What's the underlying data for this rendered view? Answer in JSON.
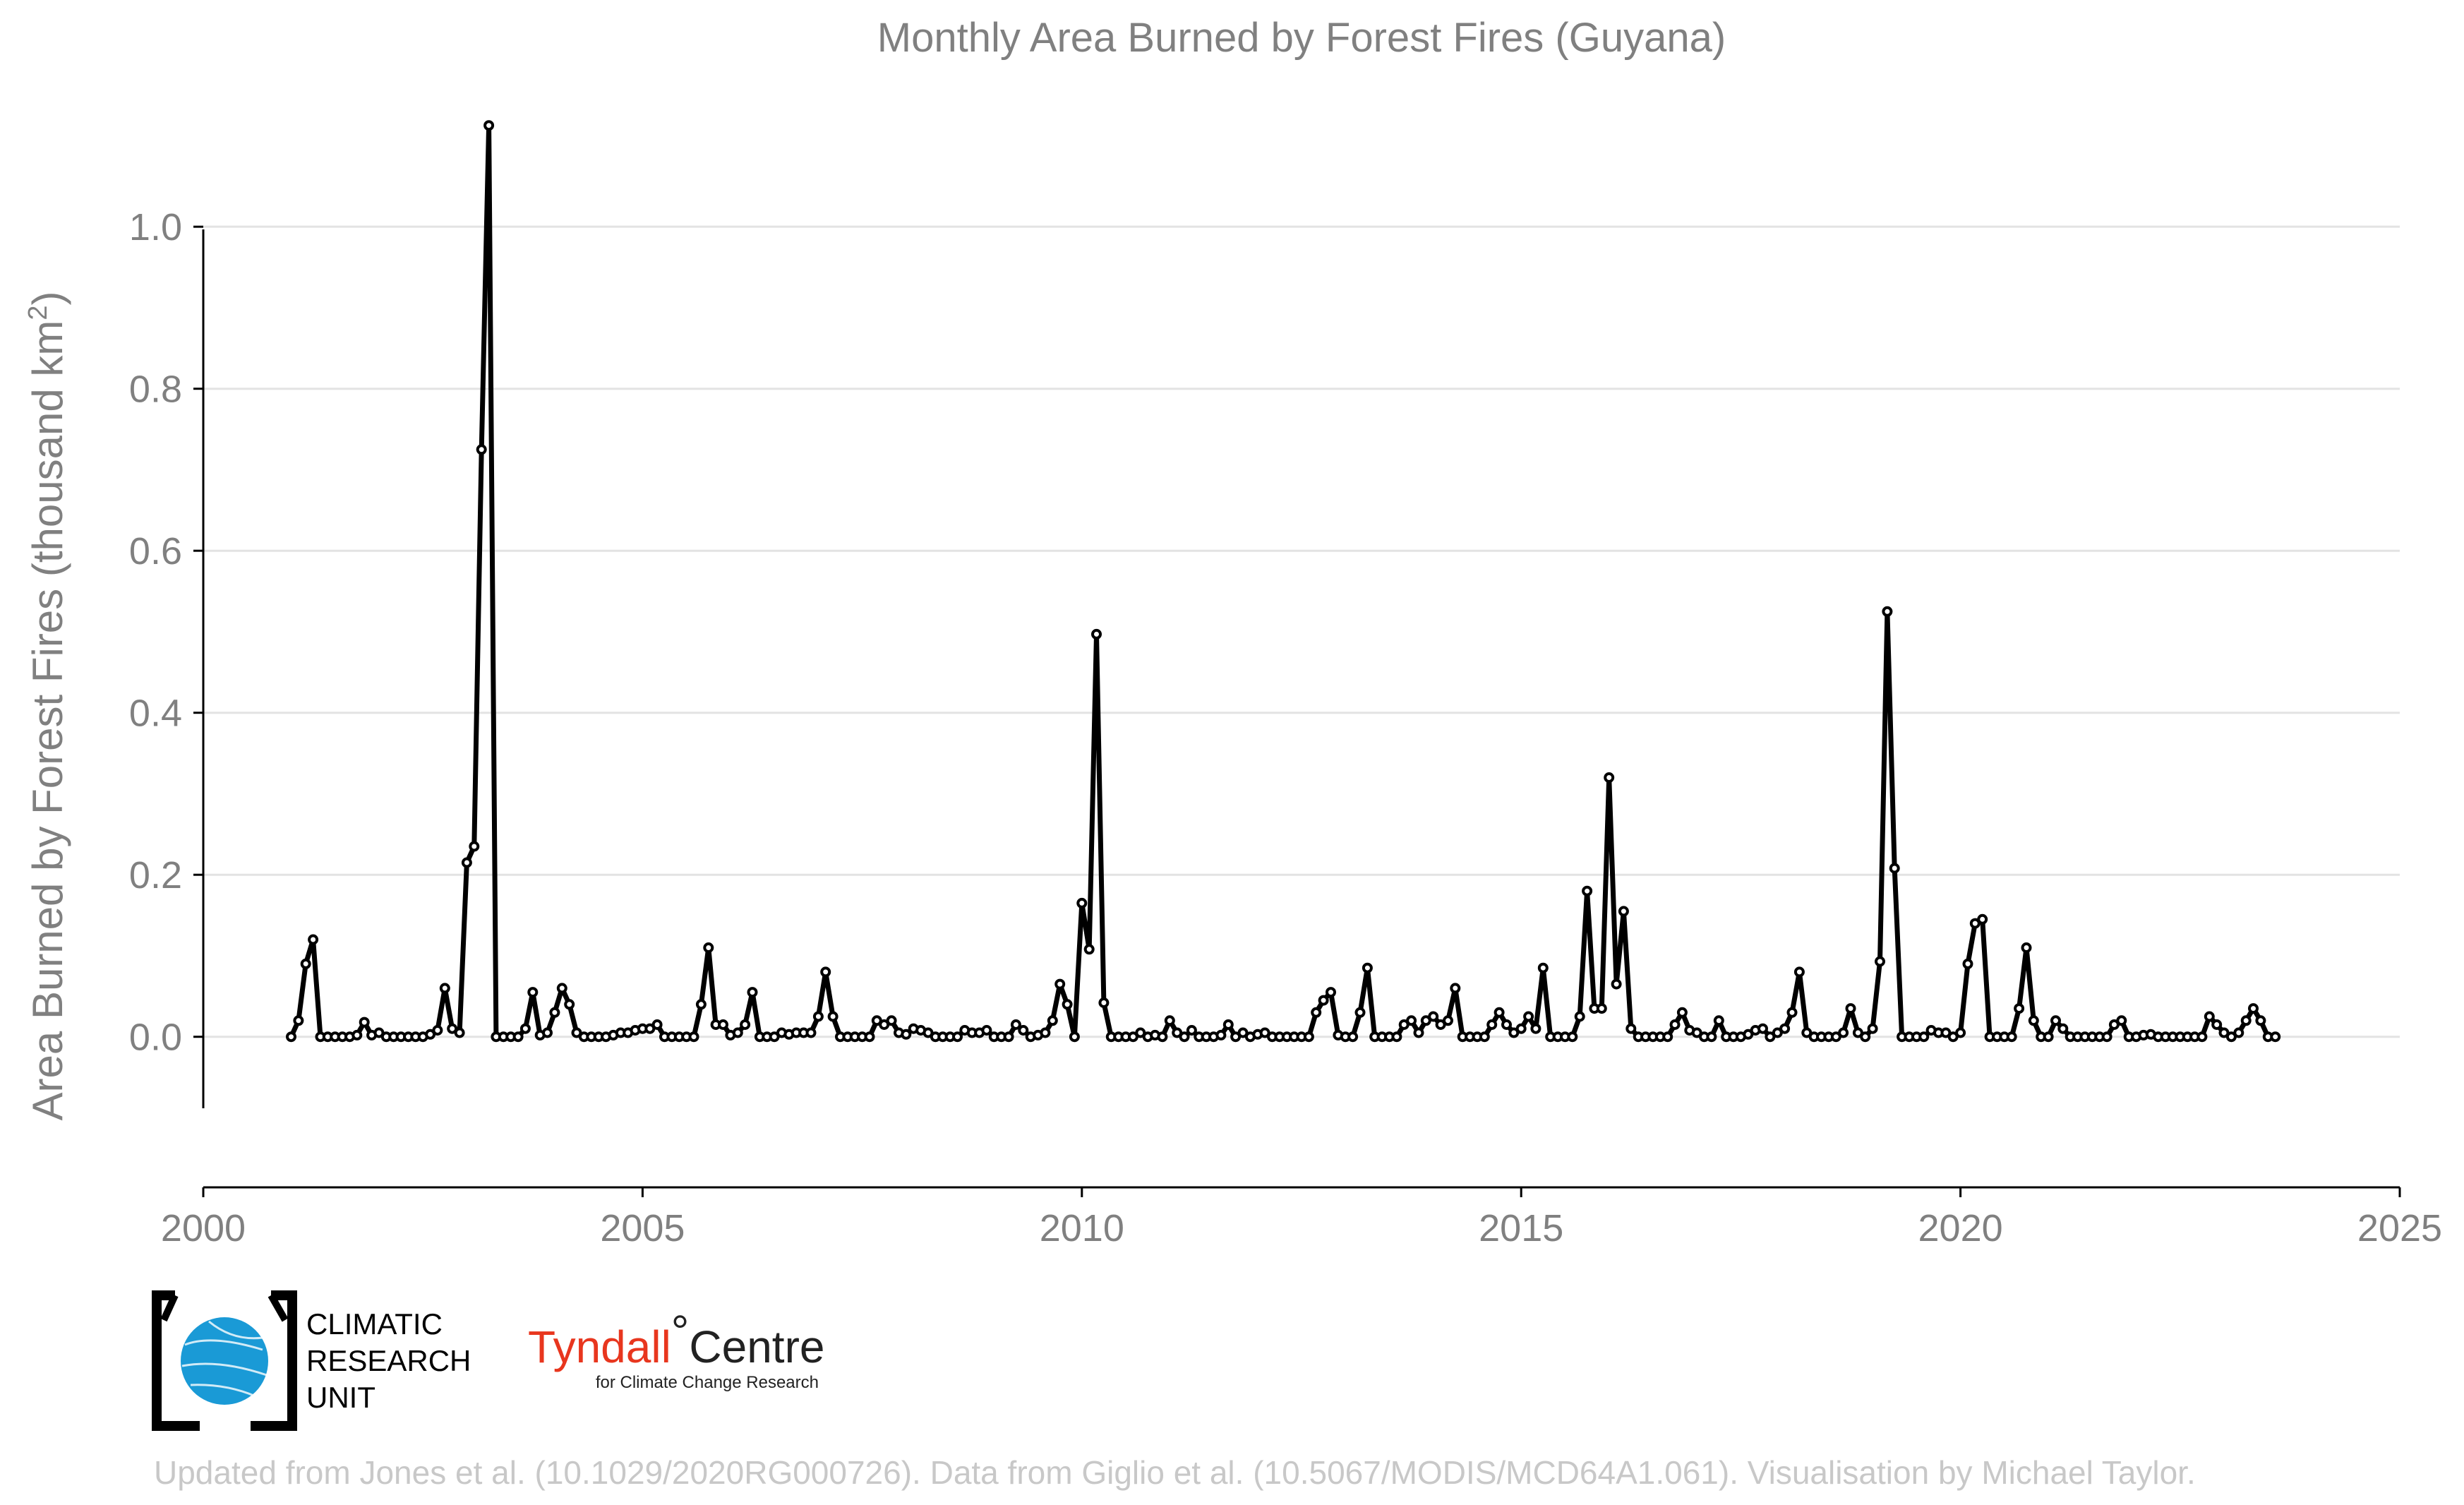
{
  "chart_data": {
    "type": "line",
    "title": "Monthly Area Burned by Forest Fires (Guyana)",
    "ylabel": "Area Burned by Forest Fires (thousand km²)",
    "ylabel_main": "Area Burned by Forest Fires (thousand km",
    "ylabel_sup": "2",
    "ylabel_close": ")",
    "xlabel": "",
    "xlim": [
      2000,
      2025
    ],
    "ylim": [
      -0.09,
      1.13
    ],
    "xticks": [
      2000,
      2005,
      2010,
      2015,
      2020,
      2025
    ],
    "xtick_labels": [
      "2000",
      "2005",
      "2010",
      "2015",
      "2020",
      "2025"
    ],
    "yticks": [
      0.0,
      0.2,
      0.4,
      0.6,
      0.8,
      1.0
    ],
    "ytick_labels": [
      "0.0",
      "0.2",
      "0.4",
      "0.6",
      "0.8",
      "1.0"
    ],
    "grid": "horizontal",
    "start": [
      2001,
      1
    ],
    "series": [
      {
        "values": [
          0.0,
          0.02,
          0.09,
          0.12,
          0.0,
          0.0,
          0.0,
          0.0,
          0.0,
          0.002,
          0.018,
          0.002,
          0.005,
          0.0,
          0.0,
          0.0,
          0.0,
          0.0,
          0.0,
          0.003,
          0.008,
          0.06,
          0.01,
          0.005,
          0.215,
          0.235,
          0.725,
          1.125,
          0.0,
          0.0,
          0.0,
          0.0,
          0.01,
          0.055,
          0.002,
          0.005,
          0.03,
          0.06,
          0.04,
          0.005,
          0.0,
          0.0,
          0.0,
          0.0,
          0.002,
          0.005,
          0.005,
          0.008,
          0.01,
          0.01,
          0.015,
          0.0,
          0.0,
          0.0,
          0.0,
          0.0,
          0.04,
          0.11,
          0.015,
          0.015,
          0.002,
          0.005,
          0.015,
          0.055,
          0.0,
          0.0,
          0.0,
          0.005,
          0.003,
          0.005,
          0.005,
          0.005,
          0.025,
          0.08,
          0.025,
          0.0,
          0.0,
          0.0,
          0.0,
          0.0,
          0.02,
          0.015,
          0.02,
          0.005,
          0.003,
          0.01,
          0.008,
          0.005,
          0.0,
          0.0,
          0.0,
          0.0,
          0.008,
          0.005,
          0.005,
          0.008,
          0.0,
          0.0,
          0.0,
          0.015,
          0.008,
          0.0,
          0.002,
          0.005,
          0.02,
          0.065,
          0.04,
          0.0,
          0.165,
          0.108,
          0.497,
          0.042,
          0.0,
          0.0,
          0.0,
          0.0,
          0.005,
          0.0,
          0.002,
          0.0,
          0.02,
          0.005,
          0.0,
          0.008,
          0.0,
          0.0,
          0.0,
          0.002,
          0.015,
          0.0,
          0.005,
          0.0,
          0.003,
          0.005,
          0.0,
          0.0,
          0.0,
          0.0,
          0.0,
          0.0,
          0.03,
          0.045,
          0.055,
          0.002,
          0.0,
          0.0,
          0.03,
          0.085,
          0.0,
          0.0,
          0.0,
          0.0,
          0.015,
          0.02,
          0.005,
          0.02,
          0.025,
          0.015,
          0.02,
          0.06,
          0.0,
          0.0,
          0.0,
          0.0,
          0.015,
          0.03,
          0.015,
          0.005,
          0.01,
          0.025,
          0.01,
          0.085,
          0.0,
          0.0,
          0.0,
          0.0,
          0.025,
          0.18,
          0.035,
          0.035,
          0.32,
          0.065,
          0.155,
          0.01,
          0.0,
          0.0,
          0.0,
          0.0,
          0.0,
          0.015,
          0.03,
          0.008,
          0.005,
          0.0,
          0.0,
          0.02,
          0.0,
          0.0,
          0.0,
          0.003,
          0.008,
          0.01,
          0.0,
          0.005,
          0.01,
          0.03,
          0.08,
          0.005,
          0.0,
          0.0,
          0.0,
          0.0,
          0.005,
          0.035,
          0.005,
          0.0,
          0.01,
          0.093,
          0.525,
          0.208,
          0.0,
          0.0,
          0.0,
          0.0,
          0.008,
          0.005,
          0.005,
          0.0,
          0.005,
          0.09,
          0.14,
          0.145,
          0.0,
          0.0,
          0.0,
          0.0,
          0.035,
          0.11,
          0.02,
          0.0,
          0.0,
          0.02,
          0.01,
          0.0,
          0.0,
          0.0,
          0.0,
          0.0,
          0.0,
          0.015,
          0.02,
          0.0,
          0.0,
          0.002,
          0.003,
          0.0,
          0.0,
          0.0,
          0.0,
          0.0,
          0.0,
          0.0,
          0.025,
          0.015,
          0.005,
          0.0,
          0.005,
          0.02,
          0.035,
          0.02,
          0.0,
          0.0
        ]
      }
    ]
  },
  "logos": {
    "cru_lines": [
      "CLIMATIC",
      "RESEARCH",
      "UNIT"
    ],
    "tyndall_main": "Tyndall",
    "tyndall_degree": "°",
    "tyndall_centre": "Centre",
    "tyndall_sub": "for Climate Change Research"
  },
  "credit": "Updated from Jones et al. (10.1029/2020RG000726). Data from Giglio et al. (10.5067/MODIS/MCD64A1.061). Visualisation by Michael Taylor.",
  "colors": {
    "line": "#000000",
    "marker_fill": "#ffffff",
    "cru_globe": "#1a9ad6",
    "tyndall_red": "#e8361e",
    "credit": "#c8c8c8"
  }
}
